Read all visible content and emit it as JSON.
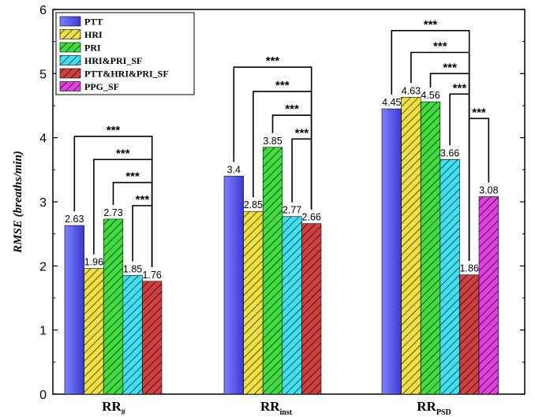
{
  "chart_data": {
    "type": "bar",
    "ylabel": "RMSE (breaths/min)",
    "ylim": [
      0,
      6
    ],
    "yticks": [
      "0",
      "1",
      "2",
      "3",
      "4",
      "5",
      "6"
    ],
    "categories": [
      {
        "main": "RR",
        "sub": "#"
      },
      {
        "main": "RR",
        "sub": "inst"
      },
      {
        "main": "RR",
        "sub": "PSD"
      }
    ],
    "series": [
      {
        "name": "PTT",
        "color": "#5a5ae6",
        "pattern": "solid",
        "values": [
          2.63,
          3.4,
          4.45
        ],
        "labels": [
          "2.63",
          "3.4",
          "4.45"
        ]
      },
      {
        "name": "HRI",
        "color": "#f0e040",
        "pattern": "hatch",
        "values": [
          1.96,
          2.85,
          4.63
        ],
        "labels": [
          "1.96",
          "2.85",
          "4.63"
        ]
      },
      {
        "name": "PRI",
        "color": "#40dd40",
        "pattern": "hatch",
        "values": [
          2.73,
          3.85,
          4.56
        ],
        "labels": [
          "2.73",
          "3.85",
          "4.56"
        ]
      },
      {
        "name": "HRI&PRI_SF",
        "color": "#40e0f0",
        "pattern": "hatch",
        "values": [
          1.85,
          2.77,
          3.66
        ],
        "labels": [
          "1.85",
          "2.77",
          "3.66"
        ]
      },
      {
        "name": "PTT&HRI&PRI_SF",
        "color": "#d04040",
        "pattern": "hatch",
        "values": [
          1.76,
          2.66,
          1.86
        ],
        "labels": [
          "1.76",
          "2.66",
          "1.86"
        ]
      },
      {
        "name": "PPG_SF",
        "color": "#e040e0",
        "pattern": "hatch",
        "values": [
          null,
          null,
          3.08
        ],
        "labels": [
          "",
          "",
          "3.08"
        ]
      }
    ],
    "legend_position": "top-left",
    "significance_label": "***",
    "significance": [
      {
        "category": 0,
        "from": 0,
        "to": 4,
        "level": 4.02
      },
      {
        "category": 0,
        "from": 1,
        "to": 4,
        "level": 3.66
      },
      {
        "category": 0,
        "from": 2,
        "to": 4,
        "level": 3.3
      },
      {
        "category": 0,
        "from": 3,
        "to": 4,
        "level": 2.94
      },
      {
        "category": 1,
        "from": 0,
        "to": 4,
        "level": 5.1
      },
      {
        "category": 1,
        "from": 1,
        "to": 4,
        "level": 4.72
      },
      {
        "category": 1,
        "from": 2,
        "to": 4,
        "level": 4.35
      },
      {
        "category": 1,
        "from": 3,
        "to": 4,
        "level": 3.98
      },
      {
        "category": 2,
        "from": 0,
        "to": 4,
        "level": 5.67
      },
      {
        "category": 2,
        "from": 1,
        "to": 4,
        "level": 5.33
      },
      {
        "category": 2,
        "from": 2,
        "to": 4,
        "level": 5.0
      },
      {
        "category": 2,
        "from": 3,
        "to": 4,
        "level": 4.68
      },
      {
        "category": 2,
        "from": 5,
        "to": 4,
        "level": 4.3
      }
    ]
  }
}
